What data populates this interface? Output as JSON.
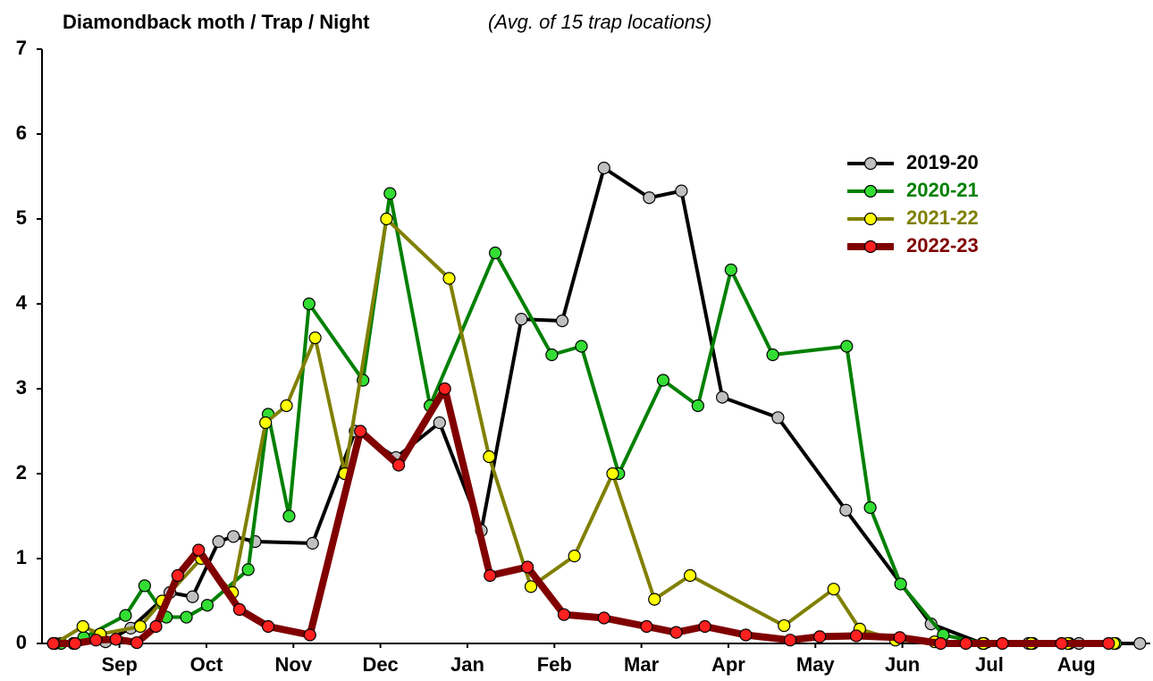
{
  "chart_data": {
    "type": "line",
    "title": "Diamondback moth / Trap / Night",
    "subtitle": "(Avg. of 15 trap locations)",
    "xlim": [
      -0.39,
      12.35
    ],
    "xticks": [
      {
        "value": 0.5,
        "label": "Sep"
      },
      {
        "value": 1.5,
        "label": "Oct"
      },
      {
        "value": 2.5,
        "label": "Nov"
      },
      {
        "value": 3.5,
        "label": "Dec"
      },
      {
        "value": 4.5,
        "label": "Jan"
      },
      {
        "value": 5.5,
        "label": "Feb"
      },
      {
        "value": 6.5,
        "label": "Mar"
      },
      {
        "value": 7.5,
        "label": "Apr"
      },
      {
        "value": 8.5,
        "label": "May"
      },
      {
        "value": 9.5,
        "label": "Jun"
      },
      {
        "value": 10.5,
        "label": "Jul"
      },
      {
        "value": 11.5,
        "label": "Aug"
      }
    ],
    "ylim": [
      0,
      7
    ],
    "yticks": [
      0,
      1,
      2,
      3,
      4,
      5,
      6,
      7
    ],
    "legend": "upper right",
    "series": [
      {
        "name": "2019-20",
        "color": "#000000",
        "marker_color": "#c0c0c0",
        "width": 4,
        "x": [
          -0.26,
          -0.03,
          0.34,
          0.63,
          1.08,
          1.34,
          1.64,
          1.81,
          2.06,
          2.72,
          3.21,
          3.68,
          4.18,
          4.66,
          5.12,
          5.59,
          6.07,
          6.59,
          6.96,
          7.43,
          8.07,
          8.85,
          9.83,
          10.42,
          10.95,
          11.53,
          12.23
        ],
        "values": [
          0,
          0,
          0.02,
          0.18,
          0.6,
          0.55,
          1.2,
          1.26,
          1.2,
          1.18,
          2.5,
          2.19,
          2.6,
          1.33,
          3.82,
          3.8,
          5.6,
          5.25,
          5.33,
          2.9,
          2.66,
          1.57,
          0.23,
          0,
          0,
          0,
          0
        ]
      },
      {
        "name": "2020-21",
        "color": "#008000",
        "marker_color": "#33dd33",
        "width": 4,
        "x": [
          -0.17,
          0.09,
          0.57,
          0.79,
          1.04,
          1.27,
          1.51,
          1.98,
          2.21,
          2.45,
          2.68,
          3.3,
          3.61,
          4.07,
          4.82,
          5.47,
          5.81,
          6.24,
          6.75,
          7.15,
          7.53,
          8.01,
          8.86,
          9.13,
          9.48,
          9.97,
          10.44,
          11.0,
          11.42,
          11.95
        ],
        "values": [
          0,
          0.07,
          0.33,
          0.68,
          0.31,
          0.31,
          0.45,
          0.87,
          2.7,
          1.5,
          4.0,
          3.1,
          5.3,
          2.8,
          4.6,
          3.4,
          3.5,
          2.0,
          3.1,
          2.8,
          4.4,
          3.4,
          3.5,
          1.6,
          0.7,
          0.1,
          0,
          0,
          0,
          0
        ]
      },
      {
        "name": "2021-22",
        "color": "#808000",
        "marker_color": "#ffff00",
        "width": 4,
        "x": [
          -0.24,
          0.08,
          0.28,
          0.74,
          0.99,
          1.44,
          1.8,
          2.18,
          2.42,
          2.75,
          3.09,
          3.57,
          4.29,
          4.75,
          5.23,
          5.73,
          6.17,
          6.65,
          7.06,
          8.14,
          8.71,
          9.01,
          9.42,
          9.87,
          10.43,
          10.98,
          11.4,
          11.93
        ],
        "values": [
          0,
          0.2,
          0.11,
          0.2,
          0.5,
          1.0,
          0.6,
          2.6,
          2.8,
          3.6,
          2.0,
          5.0,
          4.3,
          2.2,
          0.67,
          1.03,
          2.0,
          0.52,
          0.8,
          0.21,
          0.64,
          0.17,
          0.04,
          0.02,
          0,
          0,
          0,
          0
        ]
      },
      {
        "name": "2022-23",
        "color": "#800000",
        "marker_color": "#ff2020",
        "width": 8,
        "x": [
          -0.26,
          -0.01,
          0.23,
          0.46,
          0.7,
          0.92,
          1.17,
          1.41,
          1.88,
          2.21,
          2.69,
          3.27,
          3.71,
          4.24,
          4.76,
          5.19,
          5.61,
          6.07,
          6.56,
          6.9,
          7.23,
          7.7,
          8.21,
          8.55,
          8.97,
          9.47,
          9.94,
          10.23,
          10.65,
          11.33,
          11.87
        ],
        "values": [
          0,
          0,
          0.04,
          0.05,
          0.01,
          0.2,
          0.8,
          1.1,
          0.4,
          0.2,
          0.1,
          2.5,
          2.1,
          3.0,
          0.8,
          0.9,
          0.34,
          0.3,
          0.2,
          0.13,
          0.2,
          0.1,
          0.04,
          0.08,
          0.09,
          0.07,
          0,
          0,
          0,
          0,
          0
        ]
      }
    ]
  }
}
